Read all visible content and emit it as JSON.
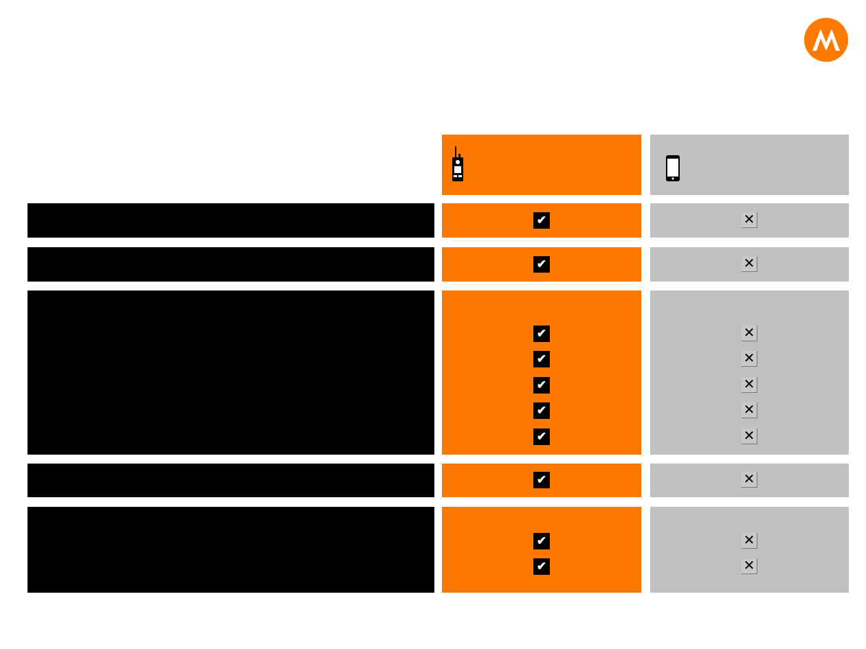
{
  "logo": {
    "icon": "motorola-logo",
    "color": "#ff7a00"
  },
  "header": {
    "column1": {
      "icon": "two-way-radio-icon",
      "color": "#ff7900"
    },
    "column2": {
      "icon": "smartphone-icon",
      "color": "#c0c0c0"
    }
  },
  "colors": {
    "label_bg": "#000000",
    "check": "#ffffff",
    "cross": "#000000"
  },
  "rows": [
    {
      "column1": [
        "check"
      ],
      "column2": [
        "cross"
      ]
    },
    {
      "column1": [
        "check"
      ],
      "column2": [
        "cross"
      ]
    },
    {
      "column1": [
        "check",
        "check",
        "check",
        "check",
        "check"
      ],
      "column2": [
        "cross",
        "cross",
        "cross",
        "cross",
        "cross"
      ]
    },
    {
      "column1": [
        "check"
      ],
      "column2": [
        "cross"
      ]
    },
    {
      "column1": [
        "check",
        "check"
      ],
      "column2": [
        "cross",
        "cross"
      ]
    }
  ]
}
